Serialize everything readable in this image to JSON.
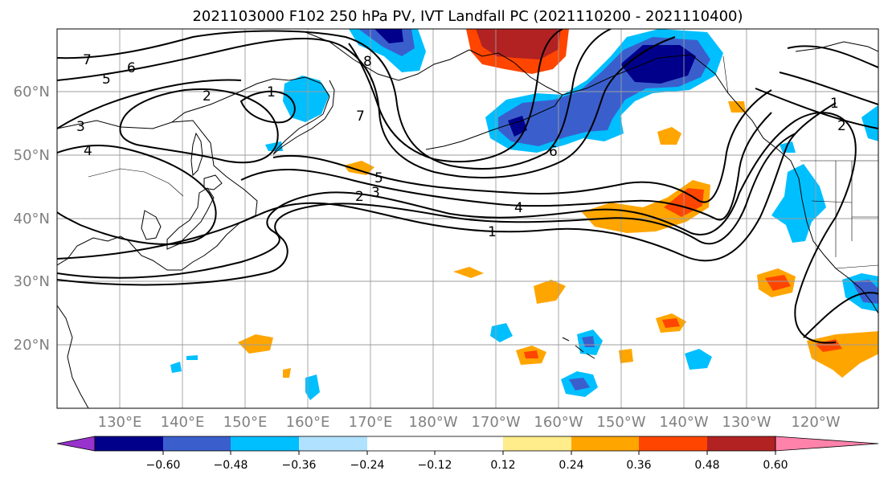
{
  "title": "2021103000 F102 250 hPa PV, IVT Landfall PC (2021110200 - 2021110400)",
  "map": {
    "projection": "PlateCarree",
    "lon_range": [
      120,
      251
    ],
    "lat_range": [
      10,
      70
    ],
    "lat_ticks": [
      "20°N",
      "30°N",
      "40°N",
      "50°N",
      "60°N"
    ],
    "lon_ticks": [
      "130°E",
      "140°E",
      "150°E",
      "160°E",
      "170°E",
      "180°W",
      "170°W",
      "160°W",
      "150°W",
      "140°W",
      "130°W",
      "120°W"
    ],
    "grid": true,
    "coastlines": true,
    "borders": true,
    "label_color": "#808080"
  },
  "contours": {
    "field": "250 hPa PV",
    "color": "#000000",
    "labels": [
      "7",
      "6",
      "5",
      "2",
      "1",
      "3",
      "4",
      "8",
      "7",
      "5",
      "3",
      "2",
      "4",
      "1",
      "6",
      "1",
      "2"
    ]
  },
  "shading": {
    "field": "IVT Landfall PC",
    "colors": {
      "min_ext": "#9932cc",
      "n060": "#00008b",
      "n048": "#3a5fcd",
      "n036": "#00bfff",
      "n024": "#b0e2ff",
      "neutral": "#ffffff",
      "p012": "#ffec8b",
      "p024": "#ffa500",
      "p036": "#ff4500",
      "p048": "#b22222",
      "max_ext": "#ff82ab"
    }
  },
  "colorbar": {
    "tick_labels": [
      "−0.60",
      "−0.48",
      "−0.36",
      "−0.24",
      "−0.12",
      "0.12",
      "0.24",
      "0.36",
      "0.48",
      "0.60"
    ],
    "colors": [
      "#00008b",
      "#3a5fcd",
      "#00bfff",
      "#b0e2ff",
      "#ffffff",
      "#ffffff",
      "#ffec8b",
      "#ffa500",
      "#ff4500",
      "#b22222"
    ],
    "under_color": "#9932cc",
    "over_color": "#ff82ab"
  }
}
